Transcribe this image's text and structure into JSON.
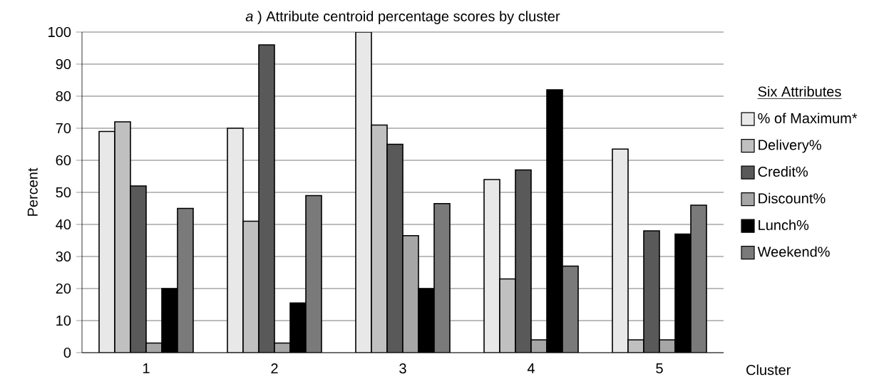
{
  "chart_data": {
    "type": "bar",
    "title": "*a* ) Attribute centroid percentage scores by cluster",
    "xlabel": "Cluster",
    "ylabel": "Percent",
    "legend_title": "Six Attributes",
    "categories": [
      "1",
      "2",
      "3",
      "4",
      "5"
    ],
    "series": [
      {
        "name": "% of Maximum*",
        "color": "#e8e8e8",
        "values": [
          69,
          70,
          100,
          54,
          63.5
        ]
      },
      {
        "name": "Delivery%",
        "color": "#c0c0c0",
        "values": [
          72,
          41,
          71,
          23,
          4
        ]
      },
      {
        "name": "Credit%",
        "color": "#595959",
        "values": [
          52,
          96,
          65,
          57,
          38
        ]
      },
      {
        "name": "Discount%",
        "color": "#a6a6a6",
        "values": [
          3,
          3,
          36.5,
          4,
          4
        ]
      },
      {
        "name": "Lunch%",
        "color": "#000000",
        "values": [
          20,
          15.5,
          20,
          82,
          37
        ]
      },
      {
        "name": "Weekend%",
        "color": "#7a7a7a",
        "values": [
          45,
          49,
          46.5,
          27,
          46
        ]
      }
    ],
    "ylim": [
      0,
      100
    ],
    "yticks": [
      0,
      10,
      20,
      30,
      40,
      50,
      60,
      70,
      80,
      90,
      100
    ],
    "grid": "y",
    "legend": "right"
  }
}
